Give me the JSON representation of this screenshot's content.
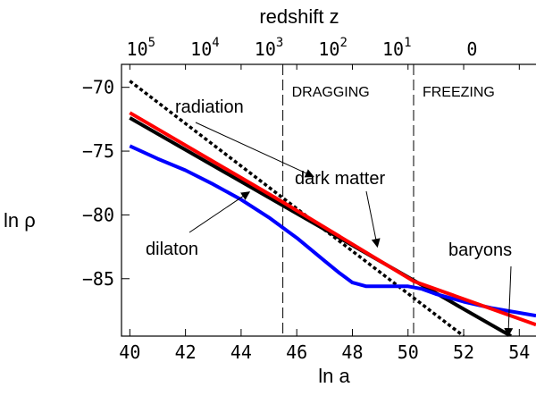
{
  "chart_data": {
    "type": "line",
    "xlabel": "ln a",
    "ylabel": "ln ρ",
    "top_axis_label": "redshift  z",
    "xlim": [
      39.7,
      54.6
    ],
    "ylim": [
      -89.5,
      -68.2
    ],
    "x_ticks": [
      40,
      42,
      44,
      46,
      48,
      50,
      52,
      54
    ],
    "y_ticks": [
      -70,
      -75,
      -80,
      -85
    ],
    "y_tick_labels": [
      "−70",
      "−75",
      "−80",
      "−85"
    ],
    "top_ticks": [
      {
        "base": "10",
        "exp": "5",
        "at_ln_a": 40.4
      },
      {
        "base": "10",
        "exp": "4",
        "at_ln_a": 42.7
      },
      {
        "base": "10",
        "exp": "3",
        "at_ln_a": 45.0
      },
      {
        "base": "10",
        "exp": "2",
        "at_ln_a": 47.3
      },
      {
        "base": "10",
        "exp": "1",
        "at_ln_a": 49.6
      },
      {
        "base": "0",
        "exp": "",
        "at_ln_a": 52.3
      }
    ],
    "regions": [
      {
        "label": "DRAGGING",
        "boundary_ln_a": 45.5
      },
      {
        "label": "FREEZING",
        "boundary_ln_a": 50.2
      }
    ],
    "series": [
      {
        "name": "radiation",
        "color": "#000000",
        "dash": "dotted",
        "x": [
          40.0,
          52.0
        ],
        "y": [
          -69.5,
          -89.5
        ]
      },
      {
        "name": "dark matter",
        "color": "#ff0000",
        "dash": "solid",
        "x": [
          40.0,
          45.5,
          50.2,
          54.6
        ],
        "y": [
          -72.0,
          -79.0,
          -85.2,
          -88.6
        ]
      },
      {
        "name": "baryons",
        "color": "#000000",
        "dash": "solid",
        "x": [
          40.0,
          53.7
        ],
        "y": [
          -72.4,
          -89.5
        ]
      },
      {
        "name": "dilaton",
        "color": "#0000ff",
        "dash": "solid",
        "x": [
          40.0,
          41.0,
          42.0,
          43.0,
          44.0,
          45.0,
          46.0,
          47.0,
          47.5,
          48.0,
          48.5,
          49.0,
          49.5,
          50.0,
          50.5,
          51.0,
          52.0,
          53.0,
          54.6
        ],
        "y": [
          -74.6,
          -75.6,
          -76.5,
          -77.6,
          -78.8,
          -80.2,
          -81.8,
          -83.6,
          -84.5,
          -85.3,
          -85.6,
          -85.6,
          -85.6,
          -85.6,
          -85.8,
          -86.2,
          -86.8,
          -87.3,
          -87.9
        ]
      }
    ],
    "annotations": [
      {
        "text": "radiation",
        "arrow_to": [
          46.6,
          -77.0
        ]
      },
      {
        "text": "dark matter",
        "arrow_to": [
          48.9,
          -82.5
        ]
      },
      {
        "text": "dilaton",
        "arrow_to": [
          44.3,
          -78.2
        ]
      },
      {
        "text": "baryons",
        "arrow_to": [
          53.6,
          -89.5
        ]
      }
    ],
    "grid": false,
    "legend": "none"
  }
}
